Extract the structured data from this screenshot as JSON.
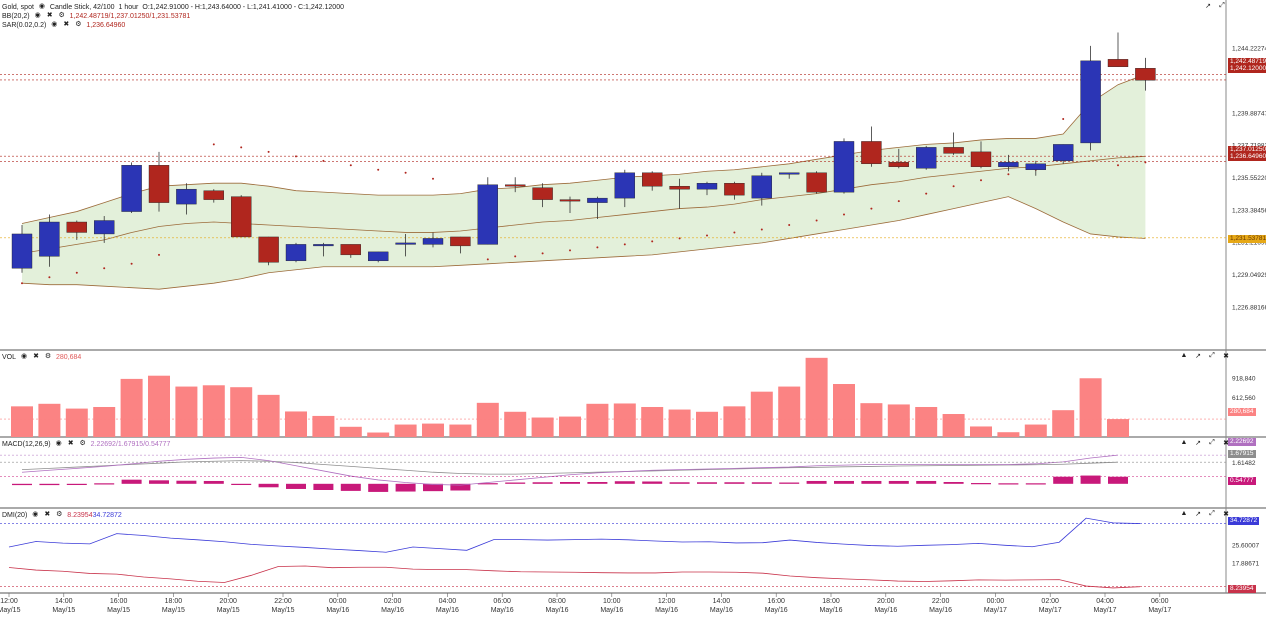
{
  "header": {
    "symbol": "Gold, spot",
    "series_type": "Candle Stick, 42/100",
    "interval": "1 hour",
    "ohlc": "O:1,242.91000 - H:1,243.64000 - L:1,241.41000 - C:1,242.12000",
    "bb_label": "BB(20,2)",
    "bb_values": "1,242.48719/1,237.01250/1,231.53781",
    "sar_label": "SAR(0.02,0.2)",
    "sar_value": "1,236.64960"
  },
  "panes": {
    "vol": {
      "label": "VOL",
      "value": "280,684"
    },
    "macd": {
      "label": "MACD(12,26,9)",
      "value": "2.22692/1.67915/0.54777"
    },
    "dmi": {
      "label": "DMI(20)",
      "value_plus": "8.23954",
      "value_minus": "34.72872"
    }
  },
  "price_tags": {
    "bb_upper": "1,242.48719",
    "last": "1,242.12000",
    "bb_mid": "1,237.01250",
    "sar": "1,236.64960",
    "bb_lower": "1,231.53781",
    "vol": "280,684",
    "macd_line": "2.22692",
    "macd_signal": "1.67915",
    "macd_hist": "0.54777",
    "dmi_plus": "34.72872",
    "dmi_minus": "8.23954"
  },
  "colors": {
    "up": "#2b35b5",
    "down": "#b0261e",
    "band_fill": "#e3f0da",
    "band_edge": "#9c6b3a",
    "volume": "#fb8383",
    "macd_line": "#b070c0",
    "macd_signal": "#8e8e8e",
    "macd_hist": "#c8197a",
    "dmi_plus": "#3b3bd8",
    "dmi_minus": "#c8324a",
    "sar": "#b0261e"
  },
  "chart_data": [
    {
      "type": "candlestick",
      "title": "Gold, spot",
      "ylim": [
        1225.5,
        1246.5
      ],
      "y_ticks": [
        "1,244.22274",
        "1,239.88747",
        "1,237.71983",
        "1,235.55220",
        "1,233.38456",
        "1,231.21693",
        "1,229.04929",
        "1,226.88166"
      ],
      "y_tick_values": [
        1244.22274,
        1239.88747,
        1237.71983,
        1235.5522,
        1233.38456,
        1231.21693,
        1229.04929,
        1226.88166
      ],
      "x_ticks": [
        {
          "time": "12:00",
          "date": "May/15"
        },
        {
          "time": "14:00",
          "date": "May/15"
        },
        {
          "time": "16:00",
          "date": "May/15"
        },
        {
          "time": "18:00",
          "date": "May/15"
        },
        {
          "time": "20:00",
          "date": "May/15"
        },
        {
          "time": "22:00",
          "date": "May/15"
        },
        {
          "time": "00:00",
          "date": "May/16"
        },
        {
          "time": "02:00",
          "date": "May/16"
        },
        {
          "time": "04:00",
          "date": "May/16"
        },
        {
          "time": "06:00",
          "date": "May/16"
        },
        {
          "time": "08:00",
          "date": "May/16"
        },
        {
          "time": "10:00",
          "date": "May/16"
        },
        {
          "time": "12:00",
          "date": "May/16"
        },
        {
          "time": "14:00",
          "date": "May/16"
        },
        {
          "time": "16:00",
          "date": "May/16"
        },
        {
          "time": "18:00",
          "date": "May/16"
        },
        {
          "time": "20:00",
          "date": "May/16"
        },
        {
          "time": "22:00",
          "date": "May/16"
        },
        {
          "time": "00:00",
          "date": "May/17"
        },
        {
          "time": "02:00",
          "date": "May/17"
        },
        {
          "time": "04:00",
          "date": "May/17"
        },
        {
          "time": "06:00",
          "date": "May/17"
        }
      ],
      "candles": [
        {
          "o": 1229.5,
          "h": 1232.4,
          "l": 1229.2,
          "c": 1231.8
        },
        {
          "o": 1230.3,
          "h": 1233.1,
          "l": 1229.6,
          "c": 1232.6
        },
        {
          "o": 1232.6,
          "h": 1232.7,
          "l": 1231.4,
          "c": 1231.9
        },
        {
          "o": 1231.8,
          "h": 1233.0,
          "l": 1231.2,
          "c": 1232.7
        },
        {
          "o": 1233.3,
          "h": 1236.6,
          "l": 1233.2,
          "c": 1236.4
        },
        {
          "o": 1236.4,
          "h": 1237.3,
          "l": 1233.3,
          "c": 1233.9
        },
        {
          "o": 1233.8,
          "h": 1235.2,
          "l": 1233.1,
          "c": 1234.8
        },
        {
          "o": 1234.7,
          "h": 1234.8,
          "l": 1233.9,
          "c": 1234.1
        },
        {
          "o": 1234.3,
          "h": 1234.4,
          "l": 1231.6,
          "c": 1231.6
        },
        {
          "o": 1231.6,
          "h": 1231.6,
          "l": 1229.7,
          "c": 1229.9
        },
        {
          "o": 1230.0,
          "h": 1231.2,
          "l": 1229.9,
          "c": 1231.1
        },
        {
          "o": 1231.0,
          "h": 1231.2,
          "l": 1230.3,
          "c": 1231.1
        },
        {
          "o": 1231.1,
          "h": 1231.1,
          "l": 1230.2,
          "c": 1230.4
        },
        {
          "o": 1230.0,
          "h": 1230.6,
          "l": 1229.9,
          "c": 1230.6
        },
        {
          "o": 1231.2,
          "h": 1231.8,
          "l": 1230.3,
          "c": 1231.2
        },
        {
          "o": 1231.1,
          "h": 1231.9,
          "l": 1230.9,
          "c": 1231.5
        },
        {
          "o": 1231.6,
          "h": 1231.6,
          "l": 1230.5,
          "c": 1231.0
        },
        {
          "o": 1231.1,
          "h": 1235.6,
          "l": 1231.1,
          "c": 1235.1
        },
        {
          "o": 1235.1,
          "h": 1235.6,
          "l": 1234.6,
          "c": 1235.0
        },
        {
          "o": 1234.9,
          "h": 1235.2,
          "l": 1233.6,
          "c": 1234.1
        },
        {
          "o": 1234.1,
          "h": 1234.3,
          "l": 1233.2,
          "c": 1234.0
        },
        {
          "o": 1233.9,
          "h": 1234.3,
          "l": 1232.8,
          "c": 1234.2
        },
        {
          "o": 1234.2,
          "h": 1236.1,
          "l": 1233.6,
          "c": 1235.9
        },
        {
          "o": 1235.9,
          "h": 1236.0,
          "l": 1234.7,
          "c": 1235.0
        },
        {
          "o": 1235.0,
          "h": 1235.5,
          "l": 1233.5,
          "c": 1234.8
        },
        {
          "o": 1234.8,
          "h": 1235.3,
          "l": 1234.4,
          "c": 1235.2
        },
        {
          "o": 1235.2,
          "h": 1235.3,
          "l": 1234.1,
          "c": 1234.4
        },
        {
          "o": 1234.2,
          "h": 1235.9,
          "l": 1233.7,
          "c": 1235.7
        },
        {
          "o": 1235.8,
          "h": 1235.9,
          "l": 1235.5,
          "c": 1235.9
        },
        {
          "o": 1235.9,
          "h": 1236.0,
          "l": 1234.5,
          "c": 1234.6
        },
        {
          "o": 1234.6,
          "h": 1238.2,
          "l": 1234.5,
          "c": 1238.0
        },
        {
          "o": 1238.0,
          "h": 1239.0,
          "l": 1236.3,
          "c": 1236.5
        },
        {
          "o": 1236.6,
          "h": 1237.5,
          "l": 1236.2,
          "c": 1236.3
        },
        {
          "o": 1236.2,
          "h": 1237.7,
          "l": 1236.1,
          "c": 1237.6
        },
        {
          "o": 1237.6,
          "h": 1238.6,
          "l": 1237.1,
          "c": 1237.2
        },
        {
          "o": 1237.3,
          "h": 1238.0,
          "l": 1236.2,
          "c": 1236.3
        },
        {
          "o": 1236.3,
          "h": 1237.1,
          "l": 1236.0,
          "c": 1236.6
        },
        {
          "o": 1236.1,
          "h": 1236.7,
          "l": 1235.7,
          "c": 1236.5
        },
        {
          "o": 1236.7,
          "h": 1237.8,
          "l": 1236.5,
          "c": 1237.8
        },
        {
          "o": 1237.9,
          "h": 1244.4,
          "l": 1237.4,
          "c": 1243.4
        },
        {
          "o": 1243.5,
          "h": 1245.3,
          "l": 1243.0,
          "c": 1243.0
        },
        {
          "o": 1242.9,
          "h": 1243.6,
          "l": 1241.4,
          "c": 1242.1
        }
      ],
      "bb_upper": [
        1232.5,
        1232.9,
        1233.3,
        1233.9,
        1234.5,
        1235.0,
        1235.1,
        1235.2,
        1235.2,
        1235.0,
        1234.7,
        1234.6,
        1234.5,
        1234.4,
        1234.4,
        1234.4,
        1234.5,
        1234.8,
        1234.9,
        1235.1,
        1235.2,
        1235.4,
        1235.6,
        1235.7,
        1235.8,
        1236.0,
        1236.1,
        1236.3,
        1236.5,
        1236.8,
        1237.1,
        1237.4,
        1237.6,
        1237.8,
        1237.9,
        1238.1,
        1238.2,
        1238.2,
        1238.5,
        1240.6,
        1241.8,
        1242.5
      ],
      "bb_mid": [
        1230.5,
        1230.8,
        1231.1,
        1231.4,
        1231.9,
        1232.3,
        1232.5,
        1232.6,
        1232.5,
        1232.4,
        1232.3,
        1232.2,
        1232.1,
        1232.0,
        1231.9,
        1231.9,
        1232.0,
        1232.2,
        1232.4,
        1232.6,
        1232.7,
        1232.9,
        1233.1,
        1233.3,
        1233.5,
        1233.6,
        1233.8,
        1234.1,
        1234.3,
        1234.5,
        1234.8,
        1235.1,
        1235.3,
        1235.6,
        1235.8,
        1236.0,
        1236.2,
        1236.3,
        1236.5,
        1236.7,
        1236.9,
        1237.0
      ],
      "bb_lower": [
        1228.5,
        1228.4,
        1228.4,
        1228.3,
        1228.2,
        1228.1,
        1228.3,
        1228.5,
        1228.8,
        1229.2,
        1229.4,
        1229.6,
        1229.6,
        1229.6,
        1229.6,
        1229.6,
        1229.7,
        1229.8,
        1229.9,
        1230.0,
        1230.1,
        1230.2,
        1230.3,
        1230.4,
        1230.6,
        1230.8,
        1231.0,
        1231.2,
        1231.5,
        1231.8,
        1232.1,
        1232.4,
        1232.7,
        1233.1,
        1233.5,
        1233.9,
        1234.3,
        1233.5,
        1232.6,
        1231.8,
        1231.6,
        1231.5
      ],
      "sar": [
        1228.5,
        1228.9,
        1229.2,
        1229.5,
        1229.8,
        1230.4,
        null,
        1237.8,
        1237.6,
        1237.3,
        1237.0,
        1236.7,
        1236.4,
        1236.1,
        1235.9,
        1235.5,
        null,
        1230.1,
        1230.3,
        1230.5,
        1230.7,
        1230.9,
        1231.1,
        1231.3,
        1231.5,
        1231.7,
        1231.9,
        1232.1,
        1232.4,
        1232.7,
        1233.1,
        1233.5,
        1234.0,
        1234.5,
        1235.0,
        1235.4,
        1235.8,
        1236.1,
        1239.5,
        null,
        1236.4,
        1236.6
      ]
    },
    {
      "type": "bar",
      "title": "VOL",
      "ylim": [
        0,
        1300000
      ],
      "y_ticks": [
        "918,840",
        "612,560"
      ],
      "y_tick_values": [
        918840,
        612560
      ],
      "values": [
        480000,
        520000,
        445000,
        470000,
        910000,
        960000,
        790000,
        810000,
        780000,
        660000,
        400000,
        330000,
        160000,
        70000,
        195000,
        210000,
        195000,
        535000,
        395000,
        305000,
        320000,
        520000,
        525000,
        470000,
        430000,
        395000,
        480000,
        710000,
        790000,
        1240000,
        830000,
        530000,
        510000,
        470000,
        360000,
        165000,
        75000,
        195000,
        420000,
        920000,
        280684
      ]
    },
    {
      "type": "line",
      "title": "MACD(12,26,9)",
      "ylim": [
        -1.8,
        3.4
      ],
      "y_ticks": [
        "1.61482"
      ],
      "y_tick_values": [
        1.61482
      ],
      "macd": [
        0.9,
        1.05,
        1.2,
        1.35,
        1.55,
        1.75,
        1.9,
        2.0,
        2.05,
        1.8,
        1.4,
        1.0,
        0.6,
        0.3,
        0.1,
        -0.05,
        -0.1,
        0.1,
        0.3,
        0.5,
        0.7,
        0.85,
        0.95,
        1.05,
        1.1,
        1.15,
        1.2,
        1.25,
        1.3,
        1.4,
        1.45,
        1.5,
        1.5,
        1.5,
        1.5,
        1.5,
        1.5,
        1.55,
        1.7,
        2.0,
        2.22692
      ],
      "signal": [
        1.1,
        1.2,
        1.3,
        1.4,
        1.5,
        1.6,
        1.7,
        1.75,
        1.8,
        1.75,
        1.65,
        1.5,
        1.35,
        1.2,
        1.05,
        0.9,
        0.8,
        0.75,
        0.75,
        0.8,
        0.85,
        0.9,
        0.95,
        1.0,
        1.05,
        1.1,
        1.15,
        1.2,
        1.25,
        1.28,
        1.32,
        1.35,
        1.38,
        1.4,
        1.42,
        1.44,
        1.46,
        1.48,
        1.52,
        1.6,
        1.67915
      ],
      "hist": [
        -0.1,
        -0.1,
        -0.08,
        0.04,
        0.32,
        0.27,
        0.24,
        0.22,
        0.0,
        -0.27,
        -0.4,
        -0.48,
        -0.55,
        -0.63,
        -0.6,
        -0.57,
        -0.52,
        0.05,
        0.1,
        0.12,
        0.14,
        0.14,
        0.2,
        0.18,
        0.12,
        0.12,
        0.12,
        0.12,
        0.1,
        0.22,
        0.22,
        0.22,
        0.22,
        0.22,
        0.14,
        0.06,
        0.04,
        0.04,
        0.55,
        0.64,
        0.54777
      ]
    },
    {
      "type": "line",
      "title": "DMI(20)",
      "ylim": [
        6,
        40
      ],
      "y_ticks": [
        "25.60007",
        "17.88671"
      ],
      "y_tick_values": [
        25.60007,
        17.88671
      ],
      "plus_di": [
        24.9,
        27.2,
        26.5,
        26.2,
        30.5,
        29.7,
        28.6,
        27.9,
        27.1,
        26.0,
        25.3,
        24.7,
        24.0,
        23.4,
        22.7,
        24.9,
        24.2,
        23.5,
        28.0,
        28.0,
        27.8,
        28.0,
        28.2,
        27.9,
        27.4,
        27.0,
        27.1,
        26.6,
        26.7,
        27.8,
        26.8,
        26.1,
        25.5,
        25.2,
        25.6,
        25.9,
        26.4,
        25.6,
        25.0,
        26.9,
        37.0,
        35.0,
        34.72872
      ],
      "minus_di": [
        16.3,
        15.2,
        14.7,
        13.8,
        13.5,
        12.3,
        11.5,
        10.5,
        10.0,
        13.0,
        16.7,
        16.9,
        16.2,
        16.4,
        16.4,
        15.6,
        15.4,
        15.4,
        14.9,
        14.5,
        14.4,
        14.3,
        14.1,
        14.0,
        14.0,
        14.4,
        14.4,
        14.3,
        13.9,
        12.7,
        12.0,
        11.5,
        11.1,
        10.6,
        10.4,
        10.7,
        11.1,
        11.0,
        11.1,
        11.2,
        8.5,
        7.7,
        8.23954
      ]
    }
  ]
}
